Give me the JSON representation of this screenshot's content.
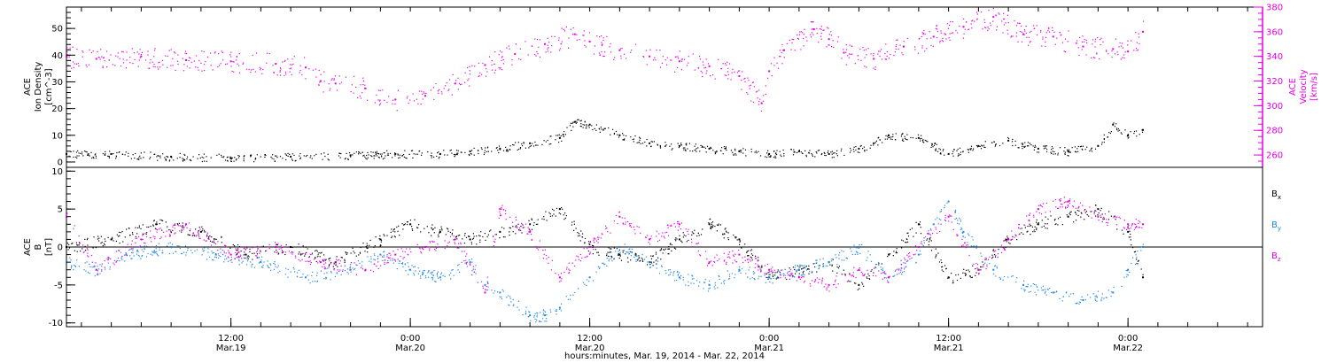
{
  "colors": {
    "black": "#000000",
    "magenta": "#e600e6",
    "blue": "#1e88e5"
  },
  "xaxis": {
    "title": "hours:minutes, Mar. 19, 2014 - Mar. 22, 2014",
    "ticks": [
      {
        "time": "12:00",
        "date": "Mar.19",
        "hours": 12
      },
      {
        "time": "0:00",
        "date": "Mar.20",
        "hours": 24
      },
      {
        "time": "12:00",
        "date": "Mar.20",
        "hours": 36
      },
      {
        "time": "0:00",
        "date": "Mar.21",
        "hours": 48
      },
      {
        "time": "12:00",
        "date": "Mar.21",
        "hours": 60
      },
      {
        "time": "0:00",
        "date": "Mar.22",
        "hours": 72
      }
    ]
  },
  "panel1": {
    "left_label": [
      "ACE",
      "Ion Density",
      "[cm^-3]"
    ],
    "right_label": [
      "ACE",
      "Velocity",
      "[km/s]"
    ]
  },
  "panel2": {
    "left_label": [
      "ACE",
      "B",
      "[nT]"
    ],
    "legend": [
      {
        "name": "B",
        "sub": "x",
        "color": "#000000"
      },
      {
        "name": "B",
        "sub": "y",
        "color": "#1e88e5"
      },
      {
        "name": "B",
        "sub": "z",
        "color": "#e600e6"
      }
    ]
  },
  "chart_data": [
    {
      "type": "scatter",
      "title": "",
      "x_unit": "hours since 2014-03-19 00:00",
      "xlim": [
        1,
        81
      ],
      "ylim": [
        -2,
        58
      ],
      "ylabel": "ACE Ion Density [cm^-3]",
      "yticks": [
        0,
        10,
        20,
        30,
        40,
        50
      ],
      "y2lim": [
        250,
        380
      ],
      "y2label": "ACE Velocity [km/s]",
      "y2ticks": [
        260,
        280,
        300,
        320,
        340,
        360,
        380
      ],
      "series": [
        {
          "name": "Ion Density",
          "axis": "left",
          "color": "#000000",
          "x": [
            1,
            4,
            8,
            12,
            16,
            20,
            23,
            26,
            28,
            30,
            32,
            34,
            35,
            36,
            38,
            40,
            42,
            44,
            46,
            48,
            50,
            52,
            54,
            55,
            56,
            58,
            60,
            62,
            64,
            66,
            68,
            70,
            71,
            72,
            73
          ],
          "y": [
            3,
            3,
            2,
            1.5,
            2,
            2.5,
            3,
            3,
            4,
            5,
            7,
            9,
            15,
            14,
            10,
            7,
            6,
            5,
            4,
            3,
            4,
            3,
            5,
            7,
            10,
            9,
            3,
            6,
            8,
            5,
            4,
            6,
            14,
            10,
            12
          ]
        },
        {
          "name": "Velocity",
          "axis": "right",
          "color": "#e600e6",
          "x": [
            1,
            3,
            6,
            9,
            12,
            15,
            17,
            18,
            19,
            21,
            23,
            25,
            27,
            29,
            31,
            33,
            35,
            36,
            38,
            40,
            42,
            44,
            46,
            47.5,
            48,
            49,
            51,
            52,
            53,
            55,
            57,
            59,
            61,
            63,
            65,
            67,
            69,
            71,
            72,
            73
          ],
          "y": [
            340,
            338,
            340,
            337,
            336,
            334,
            331,
            320,
            318,
            314,
            305,
            308,
            318,
            333,
            342,
            350,
            358,
            352,
            345,
            340,
            336,
            332,
            324,
            302,
            328,
            345,
            362,
            354,
            343,
            338,
            348,
            356,
            364,
            372,
            358,
            356,
            348,
            346,
            344,
            360
          ]
        }
      ]
    },
    {
      "type": "scatter",
      "title": "",
      "x_unit": "hours since 2014-03-19 00:00",
      "xlim": [
        1,
        81
      ],
      "ylim": [
        -10.5,
        10.5
      ],
      "ylabel": "ACE B [nT]",
      "yticks": [
        -10,
        -5,
        0,
        5,
        10
      ],
      "zero_line": true,
      "series": [
        {
          "name": "Bx",
          "color": "#000000",
          "x": [
            1,
            4,
            7,
            10,
            13,
            16,
            19,
            22,
            24,
            26,
            28,
            30,
            32,
            34,
            36,
            38,
            40,
            42,
            44,
            46,
            48,
            50,
            52,
            54,
            56,
            58,
            60,
            62,
            64,
            66,
            68,
            70,
            72,
            73
          ],
          "y": [
            0,
            1,
            3,
            2,
            -1,
            0,
            -2,
            1,
            3,
            2,
            1,
            2,
            3,
            5,
            0,
            -1,
            -2,
            1,
            3,
            1,
            -4,
            -3,
            -2,
            -5,
            -1,
            3,
            -4,
            -3,
            1,
            3,
            4,
            5,
            2,
            -4
          ]
        },
        {
          "name": "By",
          "color": "#1e88e5",
          "x": [
            1,
            3,
            5,
            8,
            11,
            14,
            17,
            20,
            22,
            24,
            26,
            28,
            29,
            30,
            32,
            33,
            34,
            36,
            38,
            40,
            42,
            44,
            46,
            48,
            50,
            52,
            54,
            56,
            58,
            59,
            60,
            61,
            63,
            65,
            67,
            69,
            71,
            72,
            73
          ],
          "y": [
            -2,
            -3,
            -1,
            0,
            -1,
            -2,
            -4,
            -3,
            -1,
            -3,
            -4,
            -2,
            -5,
            -6,
            -9,
            -9,
            -8,
            -4,
            0,
            -2,
            -4,
            -5,
            -3,
            -4,
            -3,
            -2,
            0,
            -4,
            -1,
            3,
            6,
            2,
            -3,
            -5,
            -6,
            -7,
            -6,
            -3,
            0
          ]
        },
        {
          "name": "Bz",
          "color": "#e600e6",
          "x": [
            1,
            3,
            6,
            9,
            12,
            15,
            18,
            21,
            23,
            25,
            27,
            29,
            30,
            32,
            34,
            36,
            38,
            40,
            42,
            44,
            46,
            48,
            50,
            52,
            54,
            56,
            58,
            60,
            62,
            64,
            66,
            68,
            70,
            72,
            73
          ],
          "y": [
            4,
            -3,
            1,
            3,
            -1,
            0,
            -2,
            -3,
            -1,
            0,
            1,
            -6,
            5,
            2,
            -4,
            0,
            4,
            1,
            3,
            -2,
            -1,
            -3,
            -4,
            -5,
            -3,
            -4,
            0,
            4,
            -3,
            1,
            5,
            6,
            4,
            3,
            3
          ]
        }
      ]
    }
  ]
}
